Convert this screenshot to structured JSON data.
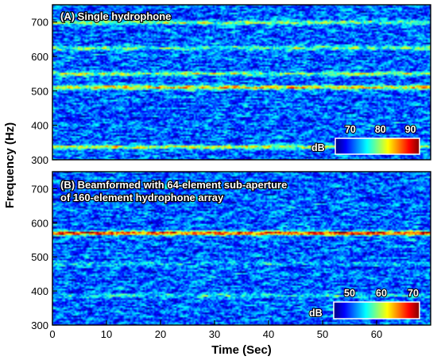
{
  "chart_data": [
    {
      "type": "heatmap",
      "title": "(A) Single hydrophone",
      "xlim": [
        0,
        70
      ],
      "ylim": [
        300,
        750
      ],
      "x_ticks": [
        "0",
        "10",
        "20",
        "30",
        "40",
        "50",
        "60"
      ],
      "y_ticks": [
        "300",
        "400",
        "500",
        "600",
        "700"
      ],
      "colorbar": {
        "label": "dB",
        "min": 65,
        "max": 93,
        "ticks": [
          "70",
          "80",
          "90"
        ]
      },
      "bands": [
        {
          "freq_hz": 335,
          "level_db": 82
        },
        {
          "freq_hz": 510,
          "level_db": 84
        },
        {
          "freq_hz": 550,
          "level_db": 80
        },
        {
          "freq_hz": 625,
          "level_db": 79
        },
        {
          "freq_hz": 700,
          "level_db": 79
        }
      ]
    },
    {
      "type": "heatmap",
      "title_lines": [
        "(B) Beamformed with 64-element sub-aperture",
        "of 160-element hydrophone array"
      ],
      "xlim": [
        0,
        70
      ],
      "ylim": [
        300,
        750
      ],
      "x_ticks": [
        "0",
        "10",
        "20",
        "30",
        "40",
        "50",
        "60"
      ],
      "y_ticks": [
        "300",
        "400",
        "500",
        "600",
        "700"
      ],
      "colorbar": {
        "label": "dB",
        "min": 45,
        "max": 72,
        "ticks": [
          "50",
          "60",
          "70"
        ]
      },
      "bands": [
        {
          "freq_hz": 570,
          "level_db": 69
        },
        {
          "freq_hz": 385,
          "level_db": 55
        },
        {
          "freq_hz": 480,
          "level_db": 54
        }
      ]
    }
  ],
  "axes": {
    "xlabel": "Time (Sec)",
    "ylabel": "Frequency (Hz)"
  },
  "colormap": [
    "#00007f",
    "#0000ff",
    "#0080ff",
    "#00ffff",
    "#80ff80",
    "#ffff00",
    "#ff8000",
    "#ff0000",
    "#7f0000"
  ]
}
